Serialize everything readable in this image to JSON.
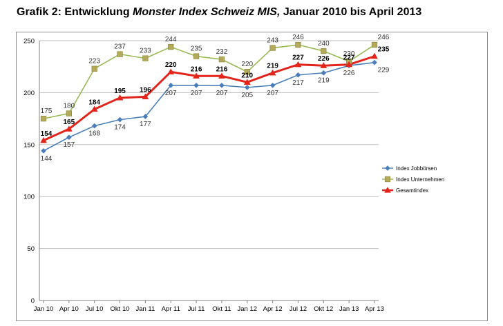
{
  "page": {
    "title_prefix": "Grafik 2: Entwicklung ",
    "title_italic": "Monster Index Schweiz MIS,",
    "title_suffix": " Januar 2010 bis April 2013"
  },
  "chart_data": {
    "type": "line",
    "categories": [
      "Jan 10",
      "Apr 10",
      "Jul 10",
      "Okt 10",
      "Jan 11",
      "Apr 11",
      "Jul 11",
      "Okt 11",
      "Jan 12",
      "Apr 12",
      "Jul 12",
      "Okt 12",
      "Jan 13",
      "Apr 13"
    ],
    "y_ticks": [
      0,
      50,
      100,
      150,
      200,
      250
    ],
    "ylim": [
      0,
      250
    ],
    "grid": "horizontal",
    "legend_position": "right",
    "series": [
      {
        "name": "Index Jobbörsen",
        "color": "#4a7ebb",
        "marker": "diamond",
        "values": [
          144,
          157,
          168,
          174,
          177,
          207,
          207,
          207,
          205,
          207,
          217,
          219,
          226,
          229
        ],
        "label_position": "below"
      },
      {
        "name": "Index Unternehmen",
        "color": "#98b954",
        "marker": "square",
        "values": [
          175,
          180,
          223,
          237,
          233,
          244,
          235,
          232,
          220,
          243,
          246,
          240,
          230,
          246
        ],
        "label_position": "above"
      },
      {
        "name": "Gesamtindex",
        "color": "#e3241b",
        "marker": "triangle",
        "values": [
          154,
          165,
          184,
          195,
          196,
          220,
          216,
          216,
          210,
          219,
          227,
          226,
          227,
          235
        ],
        "label_position": "above-bold"
      }
    ]
  }
}
